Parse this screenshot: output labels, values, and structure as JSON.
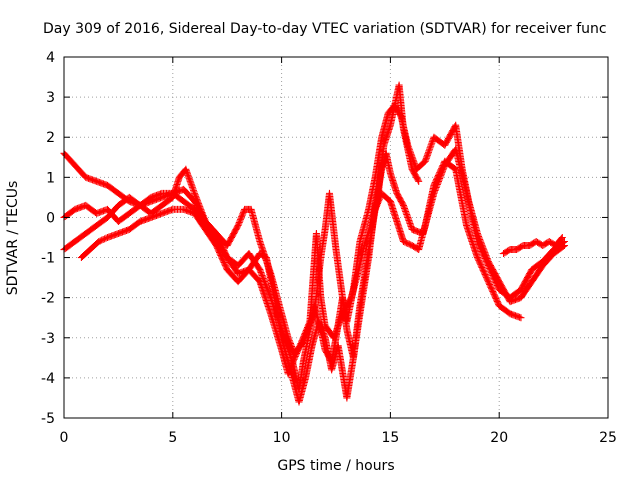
{
  "chart_data": {
    "type": "scatter",
    "title": "Day 309 of 2016, Sidereal Day-to-day VTEC variation (SDTVAR) for receiver func",
    "xlabel": "GPS time / hours",
    "ylabel": "SDTVAR / TECUs",
    "xlim": [
      0,
      25
    ],
    "ylim": [
      -5,
      4
    ],
    "xticks": [
      "0",
      "5",
      "10",
      "15",
      "20",
      "25"
    ],
    "yticks": [
      "-5",
      "-4",
      "-3",
      "-2",
      "-1",
      "0",
      "1",
      "2",
      "3",
      "4"
    ],
    "grid": true,
    "marker": "plus",
    "color": "#ff0000",
    "series": [
      {
        "points": [
          [
            0.0,
            1.6
          ],
          [
            0.5,
            1.3
          ],
          [
            1.0,
            1.0
          ],
          [
            1.5,
            0.9
          ],
          [
            2.0,
            0.8
          ],
          [
            2.5,
            0.6
          ],
          [
            3.0,
            0.4
          ],
          [
            3.5,
            0.3
          ],
          [
            4.0,
            0.4
          ],
          [
            4.5,
            0.5
          ],
          [
            5.0,
            0.6
          ],
          [
            5.5,
            0.4
          ],
          [
            6.0,
            0.2
          ],
          [
            6.5,
            -0.2
          ],
          [
            7.0,
            -0.6
          ],
          [
            7.5,
            -1.0
          ],
          [
            8.0,
            -1.2
          ],
          [
            8.5,
            -0.9
          ],
          [
            9.0,
            -1.3
          ],
          [
            9.5,
            -2.0
          ],
          [
            10.0,
            -2.8
          ],
          [
            10.5,
            -3.6
          ],
          [
            10.8,
            -4.3
          ],
          [
            11.0,
            -3.6
          ],
          [
            11.3,
            -2.8
          ],
          [
            11.5,
            -2.2
          ],
          [
            11.8,
            -2.8
          ],
          [
            12.0,
            -3.3
          ],
          [
            12.3,
            -3.6
          ],
          [
            12.5,
            -3.0
          ],
          [
            12.8,
            -2.0
          ],
          [
            13.0,
            -2.8
          ],
          [
            13.3,
            -3.5
          ],
          [
            13.6,
            -2.4
          ],
          [
            14.0,
            -1.0
          ],
          [
            14.3,
            0.3
          ],
          [
            14.6,
            1.2
          ],
          [
            14.8,
            1.6
          ],
          [
            15.0,
            1.1
          ],
          [
            15.3,
            0.6
          ],
          [
            15.6,
            0.3
          ],
          [
            16.0,
            -0.3
          ],
          [
            16.5,
            -0.4
          ],
          [
            17.0,
            0.6
          ],
          [
            17.5,
            1.3
          ],
          [
            18.0,
            1.7
          ],
          [
            18.5,
            0.6
          ],
          [
            19.0,
            -0.6
          ],
          [
            19.5,
            -1.2
          ],
          [
            20.0,
            -1.8
          ],
          [
            20.5,
            -2.0
          ],
          [
            21.0,
            -1.8
          ],
          [
            21.5,
            -1.3
          ],
          [
            22.0,
            -1.1
          ],
          [
            22.5,
            -0.8
          ],
          [
            23.0,
            -0.6
          ]
        ]
      },
      {
        "points": [
          [
            0.0,
            -0.8
          ],
          [
            0.5,
            -0.6
          ],
          [
            1.0,
            -0.4
          ],
          [
            1.5,
            -0.2
          ],
          [
            2.0,
            0.0
          ],
          [
            2.5,
            0.3
          ],
          [
            3.0,
            0.5
          ],
          [
            3.5,
            0.3
          ],
          [
            4.0,
            0.1
          ],
          [
            4.5,
            0.3
          ],
          [
            5.0,
            0.5
          ],
          [
            5.3,
            1.0
          ],
          [
            5.6,
            1.2
          ],
          [
            6.0,
            0.6
          ],
          [
            6.5,
            -0.1
          ],
          [
            7.0,
            -0.4
          ],
          [
            7.5,
            -0.7
          ],
          [
            8.0,
            -0.2
          ],
          [
            8.3,
            0.2
          ],
          [
            8.6,
            0.2
          ],
          [
            9.0,
            -0.6
          ],
          [
            9.5,
            -1.4
          ],
          [
            10.0,
            -2.4
          ],
          [
            10.3,
            -3.0
          ],
          [
            10.6,
            -3.4
          ],
          [
            11.0,
            -3.1
          ],
          [
            11.5,
            -2.4
          ],
          [
            11.8,
            -1.0
          ],
          [
            12.0,
            -0.3
          ],
          [
            12.2,
            0.6
          ],
          [
            12.5,
            -0.8
          ],
          [
            12.8,
            -2.0
          ],
          [
            13.0,
            -2.6
          ],
          [
            13.3,
            -1.8
          ],
          [
            13.6,
            -0.6
          ],
          [
            14.0,
            0.2
          ],
          [
            14.3,
            1.0
          ],
          [
            14.6,
            2.0
          ],
          [
            14.9,
            2.6
          ],
          [
            15.2,
            2.8
          ],
          [
            15.5,
            2.5
          ],
          [
            15.8,
            1.8
          ],
          [
            16.2,
            1.2
          ],
          [
            16.6,
            1.4
          ],
          [
            17.0,
            2.0
          ],
          [
            17.5,
            1.8
          ],
          [
            18.0,
            2.3
          ],
          [
            18.3,
            1.2
          ],
          [
            18.6,
            0.4
          ],
          [
            19.0,
            -0.4
          ],
          [
            19.5,
            -1.1
          ],
          [
            20.0,
            -1.6
          ],
          [
            20.5,
            -2.1
          ],
          [
            21.0,
            -2.0
          ],
          [
            21.5,
            -1.6
          ],
          [
            22.0,
            -1.2
          ],
          [
            22.5,
            -0.9
          ],
          [
            23.0,
            -0.7
          ]
        ]
      },
      {
        "points": [
          [
            0.0,
            0.0
          ],
          [
            0.5,
            0.2
          ],
          [
            1.0,
            0.3
          ],
          [
            1.5,
            0.1
          ],
          [
            2.0,
            0.2
          ],
          [
            2.5,
            -0.1
          ],
          [
            3.0,
            0.1
          ],
          [
            3.5,
            0.3
          ],
          [
            4.0,
            0.5
          ],
          [
            4.5,
            0.6
          ],
          [
            5.0,
            0.6
          ],
          [
            5.5,
            0.7
          ],
          [
            6.0,
            0.4
          ],
          [
            6.5,
            -0.1
          ],
          [
            7.0,
            -0.4
          ],
          [
            7.5,
            -1.0
          ],
          [
            8.0,
            -1.4
          ],
          [
            8.5,
            -1.3
          ],
          [
            9.0,
            -0.9
          ],
          [
            9.3,
            -1.0
          ],
          [
            9.6,
            -1.8
          ],
          [
            10.0,
            -3.0
          ],
          [
            10.4,
            -3.8
          ],
          [
            10.8,
            -4.6
          ],
          [
            11.1,
            -4.0
          ],
          [
            11.4,
            -3.2
          ],
          [
            11.7,
            -2.6
          ],
          [
            12.0,
            -3.0
          ],
          [
            12.3,
            -3.8
          ],
          [
            12.6,
            -3.2
          ],
          [
            13.0,
            -4.5
          ],
          [
            13.3,
            -3.5
          ],
          [
            13.6,
            -2.2
          ],
          [
            14.0,
            -0.8
          ],
          [
            14.3,
            0.2
          ],
          [
            14.6,
            0.6
          ],
          [
            15.0,
            0.4
          ],
          [
            15.3,
            -0.1
          ],
          [
            15.6,
            -0.6
          ],
          [
            16.0,
            -0.7
          ],
          [
            16.3,
            -0.8
          ],
          [
            16.6,
            -0.2
          ],
          [
            17.0,
            0.8
          ],
          [
            17.5,
            1.4
          ],
          [
            18.0,
            1.2
          ],
          [
            18.5,
            -0.2
          ],
          [
            19.0,
            -1.0
          ],
          [
            19.5,
            -1.6
          ],
          [
            20.0,
            -2.2
          ],
          [
            20.5,
            -2.4
          ],
          [
            21.0,
            -2.5
          ]
        ]
      },
      {
        "points": [
          [
            0.8,
            -1.0
          ],
          [
            1.2,
            -0.8
          ],
          [
            1.6,
            -0.6
          ],
          [
            2.0,
            -0.5
          ],
          [
            2.5,
            -0.4
          ],
          [
            3.0,
            -0.3
          ],
          [
            3.5,
            -0.1
          ],
          [
            4.0,
            0.0
          ],
          [
            4.5,
            0.1
          ],
          [
            5.0,
            0.2
          ],
          [
            5.5,
            0.2
          ],
          [
            6.0,
            0.1
          ],
          [
            6.5,
            -0.3
          ],
          [
            7.0,
            -0.7
          ],
          [
            7.5,
            -1.3
          ],
          [
            8.0,
            -1.6
          ],
          [
            8.5,
            -1.3
          ],
          [
            9.0,
            -1.6
          ],
          [
            9.5,
            -2.4
          ],
          [
            10.0,
            -3.3
          ],
          [
            10.3,
            -3.9
          ],
          [
            10.6,
            -3.5
          ],
          [
            11.0,
            -3.0
          ],
          [
            11.3,
            -2.6
          ],
          [
            11.6,
            -0.4
          ],
          [
            11.8,
            -2.0
          ],
          [
            12.0,
            -2.7
          ],
          [
            12.4,
            -3.0
          ],
          [
            12.8,
            -2.4
          ],
          [
            13.2,
            -2.0
          ],
          [
            13.5,
            -1.4
          ],
          [
            13.8,
            -0.7
          ],
          [
            14.1,
            -0.2
          ],
          [
            14.4,
            0.4
          ],
          [
            14.7,
            1.8
          ],
          [
            15.0,
            2.3
          ],
          [
            15.2,
            2.8
          ],
          [
            15.4,
            3.3
          ],
          [
            15.6,
            2.2
          ],
          [
            16.0,
            1.2
          ],
          [
            16.3,
            0.9
          ]
        ]
      },
      {
        "points": [
          [
            20.2,
            -0.9
          ],
          [
            20.5,
            -0.8
          ],
          [
            20.8,
            -0.8
          ],
          [
            21.1,
            -0.7
          ],
          [
            21.4,
            -0.7
          ],
          [
            21.7,
            -0.6
          ],
          [
            22.0,
            -0.7
          ],
          [
            22.3,
            -0.6
          ],
          [
            22.6,
            -0.7
          ],
          [
            22.9,
            -0.5
          ]
        ]
      }
    ]
  }
}
